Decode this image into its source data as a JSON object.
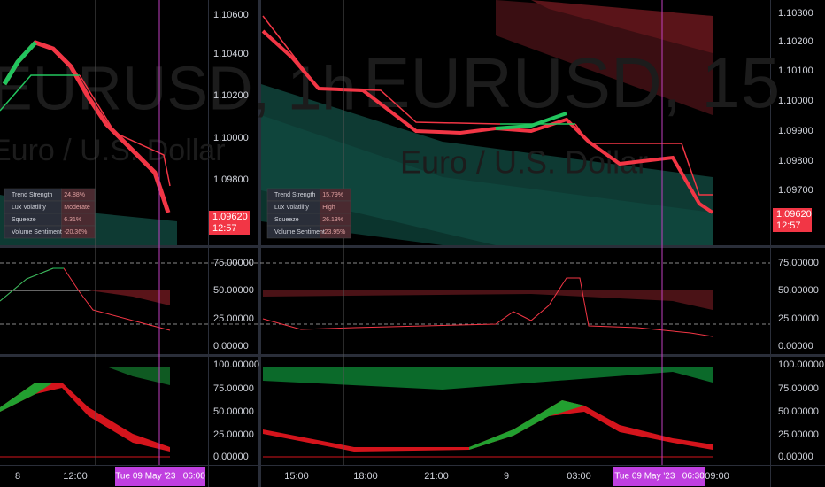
{
  "left": {
    "watermark": "EURUSD, 1h",
    "subtitle": "Euro / U.S. Dollar",
    "price_axis": [
      "1.10600",
      "1.10400",
      "1.10200",
      "1.10000",
      "1.09800"
    ],
    "price_tag": "1.09620",
    "countdown": "12:57",
    "table": [
      [
        "Trend Strength",
        "24.88%"
      ],
      [
        "Lux Volatility",
        "Moderate"
      ],
      [
        "Squeeze",
        "6.31%"
      ],
      [
        "Volume Sentiment",
        "-20.36%"
      ]
    ],
    "time_axis": [
      "8",
      "12:00"
    ],
    "crosshair_time": "Tue 09 May '23   06:00"
  },
  "right": {
    "watermark": "EURUSD, 15",
    "subtitle": "Euro / U.S. Dollar",
    "price_axis": [
      "1.10300",
      "1.10200",
      "1.10100",
      "1.10000",
      "1.09900",
      "1.09800",
      "1.09700"
    ],
    "price_tag": "1.09620",
    "countdown": "12:57",
    "table": [
      [
        "Trend Strength",
        "15.79%"
      ],
      [
        "Lux Volatility",
        "High"
      ],
      [
        "Squeeze",
        "26.13%"
      ],
      [
        "Volume Sentiment",
        "-23.95%"
      ]
    ],
    "time_axis": [
      "15:00",
      "18:00",
      "21:00",
      "9",
      "03:00",
      "09:00"
    ],
    "crosshair_time": "Tue 09 May '23   06:30"
  },
  "osc1_axis": [
    "75.00000",
    "50.00000",
    "25.00000",
    "0.00000"
  ],
  "osc2_axis": [
    "100.00000",
    "75.00000",
    "50.00000",
    "25.00000",
    "0.00000"
  ]
}
